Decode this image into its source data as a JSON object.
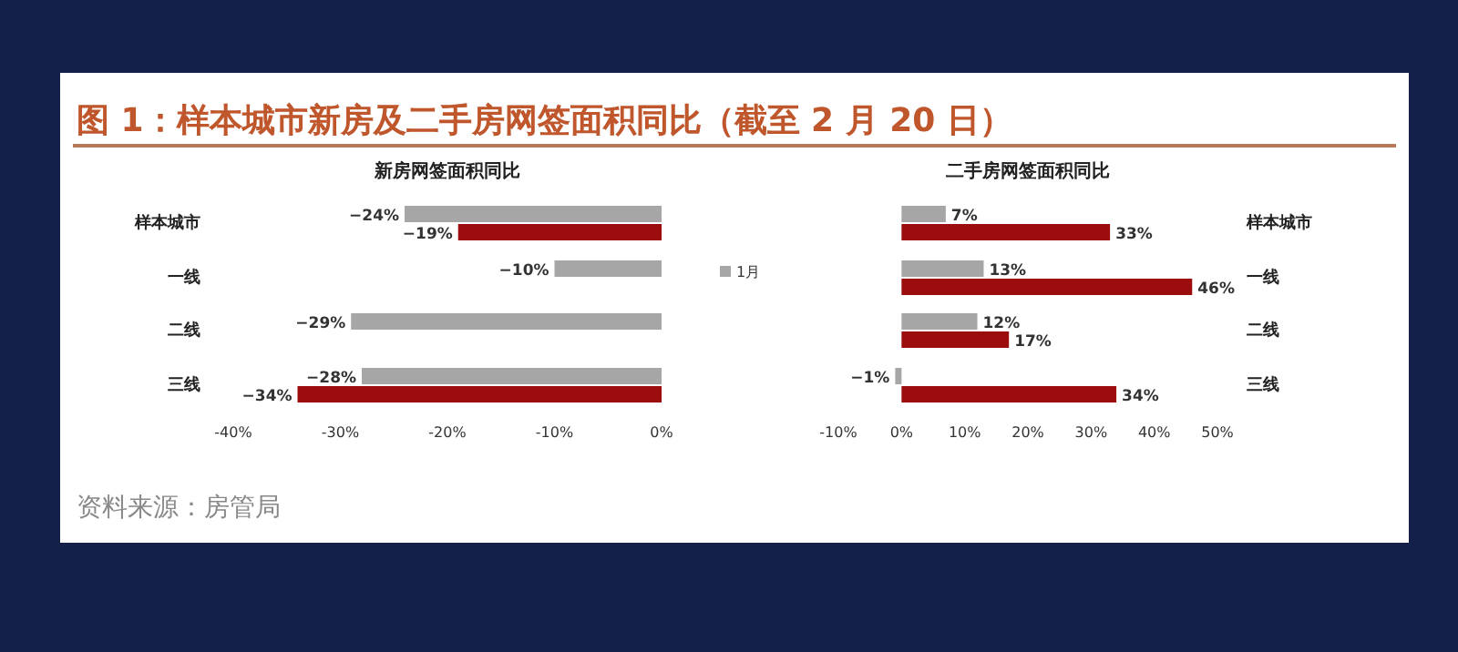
{
  "chart_data": [
    {
      "type": "bar",
      "orientation": "horizontal",
      "title": "新房网签面积同比",
      "annotations": [
        "图 1：样本城市新房及二手房网签面积同比（截至 2 月 20 日）",
        "资料来源：房管局"
      ],
      "categories": [
        "样本城市",
        "一线",
        "二线",
        "三线"
      ],
      "series": [
        {
          "name": "1月",
          "color": "#a6a6a6",
          "values": [
            -24,
            -10,
            -29,
            -28
          ],
          "value_labels": [
            "−24%",
            "−10%",
            "−29%",
            "−28%"
          ]
        },
        {
          "color": "#9b0d0d",
          "values": [
            -19,
            null,
            null,
            -34
          ],
          "value_labels": [
            "−19%",
            null,
            null,
            "−34%"
          ]
        }
      ],
      "xlim": [
        -40,
        0
      ],
      "xticks": [
        {
          "value": -40,
          "label": "-40%"
        },
        {
          "value": -30,
          "label": "-30%"
        },
        {
          "value": -20,
          "label": "-20%"
        },
        {
          "value": -10,
          "label": "-10%"
        },
        {
          "value": 0,
          "label": "0%"
        }
      ],
      "legend": "right",
      "grid": false
    },
    {
      "type": "bar",
      "orientation": "horizontal",
      "title": "二手房网签面积同比",
      "categories": [
        "样本城市",
        "一线",
        "二线",
        "三线"
      ],
      "series": [
        {
          "color": "#a6a6a6",
          "values": [
            7,
            13,
            12,
            -1
          ],
          "value_labels": [
            "7%",
            "13%",
            "12%",
            "−1%"
          ]
        },
        {
          "color": "#9b0d0d",
          "values": [
            33,
            46,
            17,
            34
          ],
          "value_labels": [
            "33%",
            "46%",
            "17%",
            "34%"
          ]
        }
      ],
      "xlim": [
        -10,
        50
      ],
      "xticks": [
        {
          "value": -10,
          "label": "-10%"
        },
        {
          "value": 0,
          "label": "0%"
        },
        {
          "value": 10,
          "label": "10%"
        },
        {
          "value": 20,
          "label": "20%"
        },
        {
          "value": 30,
          "label": "30%"
        },
        {
          "value": 40,
          "label": "40%"
        },
        {
          "value": 50,
          "label": "50%"
        }
      ],
      "grid": false
    }
  ]
}
